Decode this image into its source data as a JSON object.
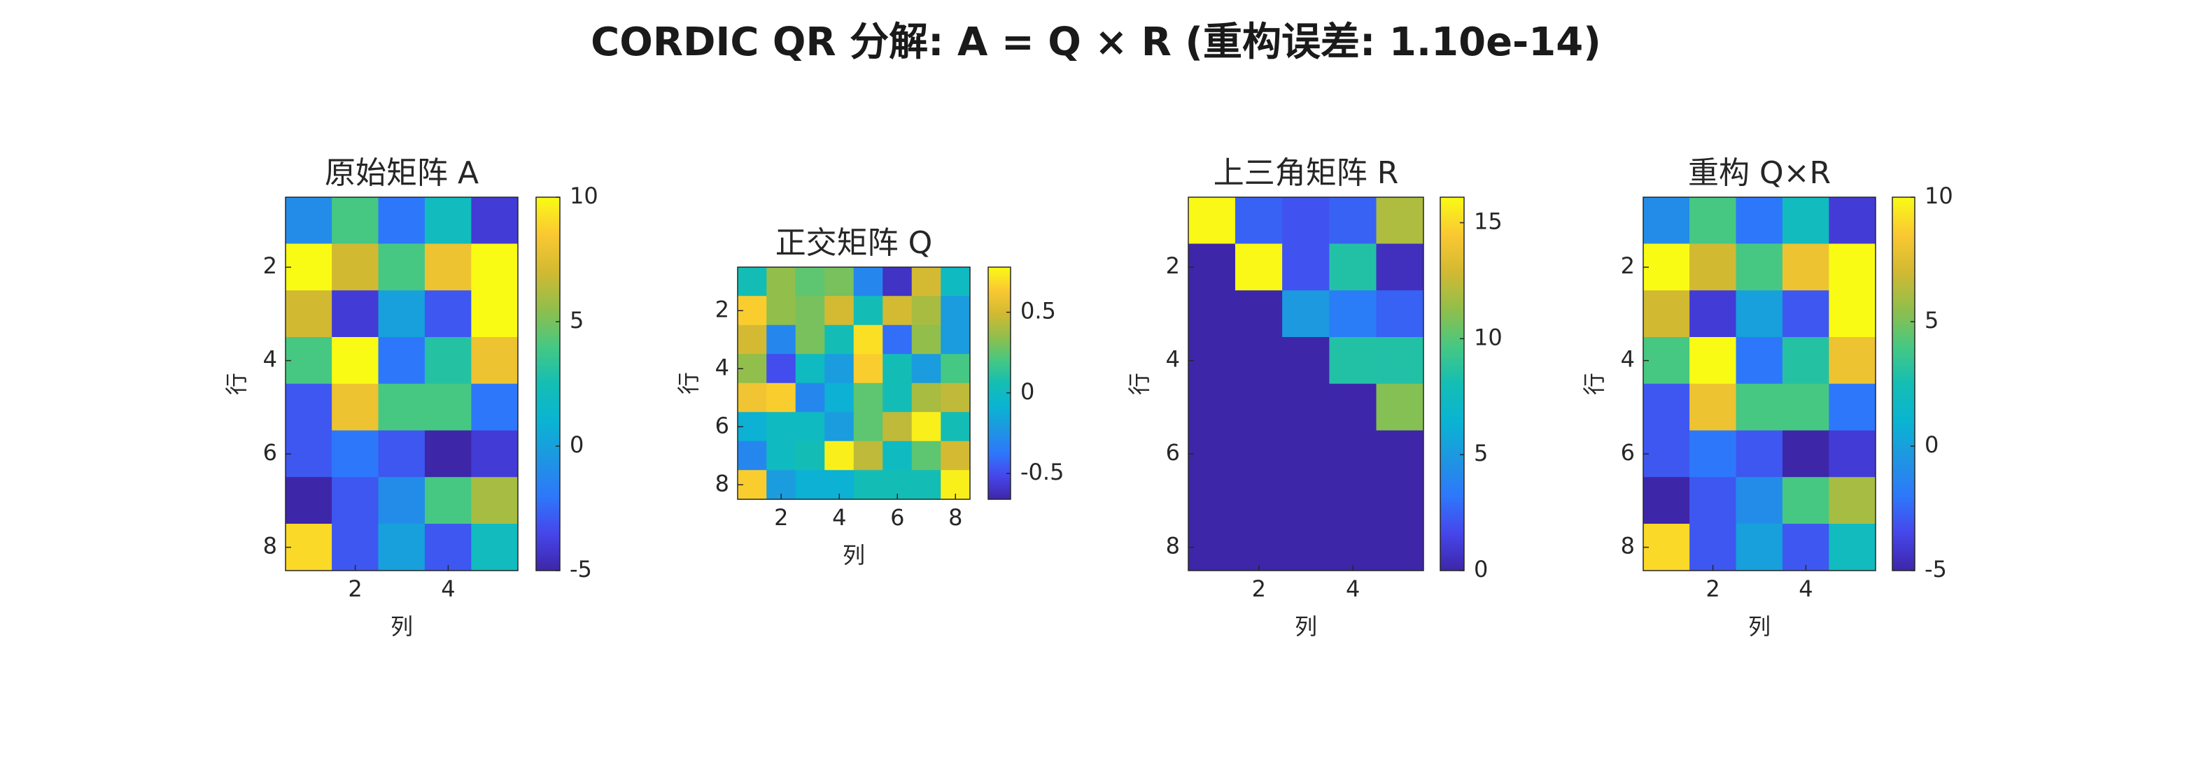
{
  "title": "CORDIC QR 分解: A = Q × R (重构误差: 1.10e-14)",
  "chart_data": [
    {
      "type": "heatmap",
      "title": "原始矩阵 A",
      "xlabel": "列",
      "ylabel": "行",
      "colormap": "parula",
      "yreverse": true,
      "xlim": [
        0.5,
        5.5
      ],
      "ylim": [
        0.5,
        8.5
      ],
      "xticks": [
        2,
        4
      ],
      "yticks": [
        2,
        4,
        6,
        8
      ],
      "clim": [
        -5,
        10
      ],
      "cticks": [
        -5,
        0,
        5,
        10
      ],
      "values": [
        [
          -1,
          4,
          -2,
          2,
          -4
        ],
        [
          10,
          7,
          4,
          8,
          10
        ],
        [
          7,
          -4,
          0,
          -3,
          10
        ],
        [
          4,
          10,
          -2,
          3,
          8
        ],
        [
          -3,
          8,
          4,
          4,
          -2
        ],
        [
          -3,
          -2,
          -3,
          -5,
          -4
        ],
        [
          -5,
          -3,
          -1,
          4,
          6
        ],
        [
          9,
          -3,
          0,
          -3,
          2
        ]
      ]
    },
    {
      "type": "heatmap",
      "title": "正交矩阵 Q",
      "xlabel": "列",
      "ylabel": "行",
      "colormap": "parula",
      "yreverse": true,
      "xlim": [
        0.5,
        8.5
      ],
      "ylim": [
        0.5,
        8.5
      ],
      "xticks": [
        2,
        4,
        6,
        8
      ],
      "yticks": [
        2,
        4,
        6,
        8
      ],
      "clim": [
        -0.66,
        0.78
      ],
      "cticks": [
        -0.5,
        0,
        0.5
      ],
      "values": [
        [
          0.05,
          0.35,
          0.25,
          0.3,
          -0.3,
          -0.6,
          0.5,
          0.0
        ],
        [
          0.65,
          0.35,
          0.3,
          0.5,
          0.05,
          0.5,
          0.4,
          -0.2
        ],
        [
          0.5,
          -0.3,
          0.3,
          0.05,
          0.7,
          -0.4,
          0.35,
          -0.2
        ],
        [
          0.35,
          -0.5,
          0.0,
          -0.2,
          0.65,
          0.05,
          -0.2,
          0.2
        ],
        [
          0.6,
          0.65,
          -0.3,
          -0.1,
          0.25,
          0.05,
          0.4,
          0.45
        ],
        [
          -0.1,
          0.0,
          0.0,
          -0.2,
          0.25,
          0.45,
          0.75,
          0.05
        ],
        [
          -0.3,
          0.0,
          0.05,
          0.75,
          0.45,
          0.0,
          0.25,
          0.5
        ],
        [
          0.65,
          -0.2,
          -0.1,
          -0.1,
          0.05,
          0.05,
          0.05,
          0.75
        ]
      ]
    },
    {
      "type": "heatmap",
      "title": "上三角矩阵 R",
      "xlabel": "列",
      "ylabel": "行",
      "colormap": "parula",
      "yreverse": true,
      "xlim": [
        0.5,
        5.5
      ],
      "ylim": [
        0.5,
        8.5
      ],
      "xticks": [
        2,
        4
      ],
      "yticks": [
        2,
        4,
        6,
        8
      ],
      "clim": [
        0,
        16.1
      ],
      "cticks": [
        0,
        5,
        10,
        15
      ],
      "values": [
        [
          16,
          2.5,
          2,
          2.5,
          12
        ],
        [
          0,
          16,
          2,
          8.5,
          0.5
        ],
        [
          0,
          0,
          5,
          3.5,
          2.5
        ],
        [
          0,
          0,
          0,
          8.5,
          8.5
        ],
        [
          0,
          0,
          0,
          0,
          11
        ],
        [
          0,
          0,
          0,
          0,
          0
        ],
        [
          0,
          0,
          0,
          0,
          0
        ],
        [
          0,
          0,
          0,
          0,
          0
        ]
      ]
    },
    {
      "type": "heatmap",
      "title": "重构 Q×R",
      "xlabel": "列",
      "ylabel": "行",
      "colormap": "parula",
      "yreverse": true,
      "xlim": [
        0.5,
        5.5
      ],
      "ylim": [
        0.5,
        8.5
      ],
      "xticks": [
        2,
        4
      ],
      "yticks": [
        2,
        4,
        6,
        8
      ],
      "clim": [
        -5,
        10
      ],
      "cticks": [
        -5,
        0,
        5,
        10
      ],
      "values": [
        [
          -1,
          4,
          -2,
          2,
          -4
        ],
        [
          10,
          7,
          4,
          8,
          10
        ],
        [
          7,
          -4,
          0,
          -3,
          10
        ],
        [
          4,
          10,
          -2,
          3,
          8
        ],
        [
          -3,
          8,
          4,
          4,
          -2
        ],
        [
          -3,
          -2,
          -3,
          -5,
          -4
        ],
        [
          -5,
          -3,
          -1,
          4,
          6
        ],
        [
          9,
          -3,
          0,
          -3,
          2
        ]
      ]
    }
  ]
}
